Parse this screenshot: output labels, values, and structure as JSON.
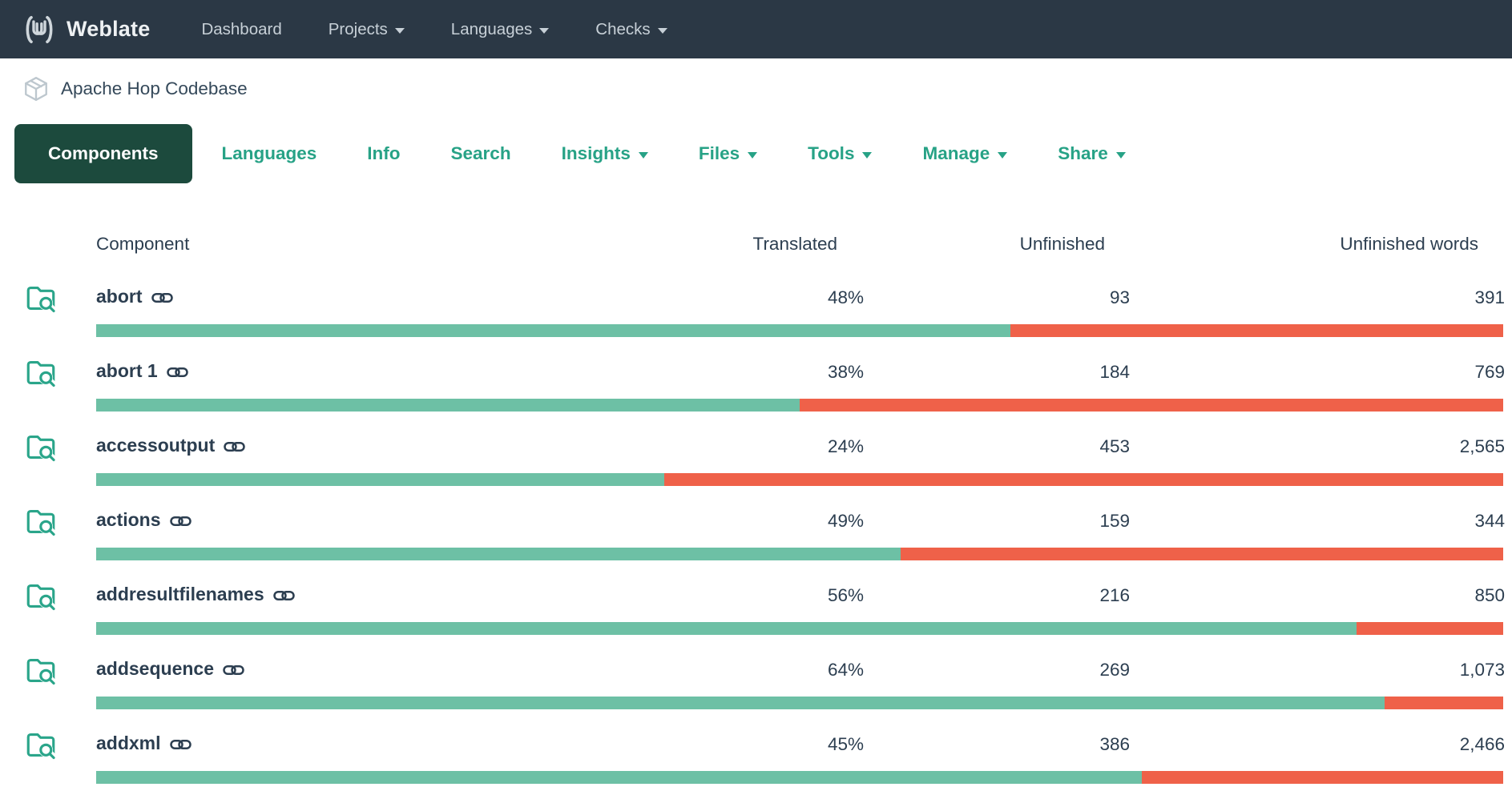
{
  "navbar": {
    "brand": "Weblate",
    "items": [
      {
        "label": "Dashboard",
        "caret": false
      },
      {
        "label": "Projects",
        "caret": true
      },
      {
        "label": "Languages",
        "caret": true
      },
      {
        "label": "Checks",
        "caret": true
      }
    ]
  },
  "breadcrumb": {
    "project": "Apache Hop Codebase"
  },
  "tabs": [
    {
      "label": "Components",
      "active": true,
      "caret": false
    },
    {
      "label": "Languages",
      "active": false,
      "caret": false
    },
    {
      "label": "Info",
      "active": false,
      "caret": false
    },
    {
      "label": "Search",
      "active": false,
      "caret": false
    },
    {
      "label": "Insights",
      "active": false,
      "caret": true
    },
    {
      "label": "Files",
      "active": false,
      "caret": true
    },
    {
      "label": "Tools",
      "active": false,
      "caret": true
    },
    {
      "label": "Manage",
      "active": false,
      "caret": true
    },
    {
      "label": "Share",
      "active": false,
      "caret": true
    }
  ],
  "table": {
    "headers": {
      "component": "Component",
      "translated": "Translated",
      "unfinished": "Unfinished",
      "unfinished_words": "Unfinished words"
    },
    "rows": [
      {
        "name": "abort",
        "translated": "48%",
        "unfinished": "93",
        "unfinished_words": "391",
        "bar_green_percent": 65.0
      },
      {
        "name": "abort 1",
        "translated": "38%",
        "unfinished": "184",
        "unfinished_words": "769",
        "bar_green_percent": 50.0
      },
      {
        "name": "accessoutput",
        "translated": "24%",
        "unfinished": "453",
        "unfinished_words": "2,565",
        "bar_green_percent": 40.4
      },
      {
        "name": "actions",
        "translated": "49%",
        "unfinished": "159",
        "unfinished_words": "344",
        "bar_green_percent": 57.2
      },
      {
        "name": "addresultfilenames",
        "translated": "56%",
        "unfinished": "216",
        "unfinished_words": "850",
        "bar_green_percent": 89.6
      },
      {
        "name": "addsequence",
        "translated": "64%",
        "unfinished": "269",
        "unfinished_words": "1,073",
        "bar_green_percent": 91.6
      },
      {
        "name": "addxml",
        "translated": "45%",
        "unfinished": "386",
        "unfinished_words": "2,466",
        "bar_green_percent": 74.3
      }
    ]
  },
  "colors": {
    "navbar_bg": "#2b3845",
    "accent_teal": "#27a286",
    "active_tab_bg": "#1c4a3d",
    "bar_translated_green": "#6dc0a5",
    "bar_unfinished_red": "#ef6149",
    "text_dark": "#2c3e50"
  }
}
